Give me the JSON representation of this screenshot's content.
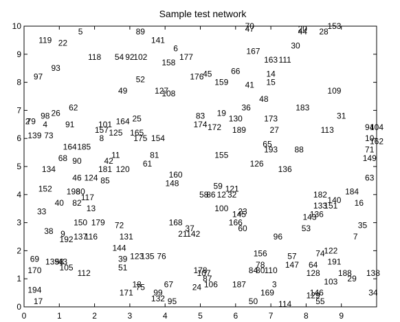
{
  "chart_data": {
    "type": "scatter",
    "title": "Sample test network",
    "xlabel": "",
    "ylabel": "",
    "xlim": [
      0,
      10
    ],
    "ylim": [
      0,
      10
    ],
    "xticks": [
      0,
      1,
      2,
      3,
      4,
      5,
      6,
      7,
      8,
      9
    ],
    "yticks": [
      0,
      1,
      2,
      3,
      4,
      5,
      6,
      7,
      8,
      9,
      10
    ],
    "grid": false,
    "marker": "text-label",
    "points": [
      {
        "label": "5",
        "x": 1.6,
        "y": 9.8
      },
      {
        "label": "89",
        "x": 3.3,
        "y": 9.8
      },
      {
        "label": "70",
        "x": 6.4,
        "y": 10.0
      },
      {
        "label": "47",
        "x": 6.4,
        "y": 9.9
      },
      {
        "label": "20",
        "x": 7.9,
        "y": 9.9
      },
      {
        "label": "44",
        "x": 7.9,
        "y": 9.8
      },
      {
        "label": "28",
        "x": 8.5,
        "y": 9.8
      },
      {
        "label": "153",
        "x": 8.8,
        "y": 10.0
      },
      {
        "label": "119",
        "x": 0.6,
        "y": 9.5
      },
      {
        "label": "22",
        "x": 1.1,
        "y": 9.4
      },
      {
        "label": "141",
        "x": 3.8,
        "y": 9.5
      },
      {
        "label": "30",
        "x": 7.7,
        "y": 9.3
      },
      {
        "label": "6",
        "x": 4.3,
        "y": 9.2
      },
      {
        "label": "167",
        "x": 6.5,
        "y": 9.1
      },
      {
        "label": "118",
        "x": 2.0,
        "y": 8.9
      },
      {
        "label": "54",
        "x": 2.7,
        "y": 8.9
      },
      {
        "label": "92",
        "x": 3.0,
        "y": 8.9
      },
      {
        "label": "102",
        "x": 3.3,
        "y": 8.9
      },
      {
        "label": "177",
        "x": 4.6,
        "y": 8.9
      },
      {
        "label": "158",
        "x": 4.1,
        "y": 8.7
      },
      {
        "label": "163",
        "x": 7.0,
        "y": 8.8
      },
      {
        "label": "111",
        "x": 7.4,
        "y": 8.8
      },
      {
        "label": "93",
        "x": 0.9,
        "y": 8.5
      },
      {
        "label": "66",
        "x": 6.0,
        "y": 8.4
      },
      {
        "label": "14",
        "x": 7.0,
        "y": 8.3
      },
      {
        "label": "176",
        "x": 4.9,
        "y": 8.2
      },
      {
        "label": "45",
        "x": 5.2,
        "y": 8.3
      },
      {
        "label": "97",
        "x": 0.4,
        "y": 8.2
      },
      {
        "label": "52",
        "x": 3.3,
        "y": 8.1
      },
      {
        "label": "159",
        "x": 5.6,
        "y": 8.0
      },
      {
        "label": "15",
        "x": 7.0,
        "y": 8.0
      },
      {
        "label": "41",
        "x": 6.4,
        "y": 7.9
      },
      {
        "label": "49",
        "x": 2.8,
        "y": 7.7
      },
      {
        "label": "127",
        "x": 3.9,
        "y": 7.7
      },
      {
        "label": "108",
        "x": 4.1,
        "y": 7.6
      },
      {
        "label": "109",
        "x": 8.8,
        "y": 7.7
      },
      {
        "label": "48",
        "x": 6.8,
        "y": 7.4
      },
      {
        "label": "62",
        "x": 1.4,
        "y": 7.1
      },
      {
        "label": "36",
        "x": 6.3,
        "y": 7.1
      },
      {
        "label": "183",
        "x": 7.9,
        "y": 7.1
      },
      {
        "label": "26",
        "x": 0.9,
        "y": 6.9
      },
      {
        "label": "98",
        "x": 0.6,
        "y": 6.8
      },
      {
        "label": "83",
        "x": 5.0,
        "y": 6.8
      },
      {
        "label": "19",
        "x": 5.6,
        "y": 6.9
      },
      {
        "label": "130",
        "x": 6.0,
        "y": 6.7
      },
      {
        "label": "173",
        "x": 7.0,
        "y": 6.7
      },
      {
        "label": "31",
        "x": 9.0,
        "y": 6.8
      },
      {
        "label": "2",
        "x": 0.1,
        "y": 6.6
      },
      {
        "label": "79",
        "x": 0.2,
        "y": 6.6
      },
      {
        "label": "4",
        "x": 0.6,
        "y": 6.5
      },
      {
        "label": "91",
        "x": 1.3,
        "y": 6.5
      },
      {
        "label": "101",
        "x": 2.3,
        "y": 6.5
      },
      {
        "label": "164",
        "x": 2.8,
        "y": 6.6
      },
      {
        "label": "25",
        "x": 3.2,
        "y": 6.7
      },
      {
        "label": "174",
        "x": 5.0,
        "y": 6.5
      },
      {
        "label": "172",
        "x": 5.4,
        "y": 6.4
      },
      {
        "label": "189",
        "x": 6.1,
        "y": 6.3
      },
      {
        "label": "27",
        "x": 7.1,
        "y": 6.3
      },
      {
        "label": "113",
        "x": 8.6,
        "y": 6.3
      },
      {
        "label": "94",
        "x": 9.8,
        "y": 6.4
      },
      {
        "label": "104",
        "x": 10.0,
        "y": 6.4
      },
      {
        "label": "157",
        "x": 2.2,
        "y": 6.3
      },
      {
        "label": "125",
        "x": 2.6,
        "y": 6.2
      },
      {
        "label": "165",
        "x": 3.2,
        "y": 6.2
      },
      {
        "label": "139",
        "x": 0.3,
        "y": 6.1
      },
      {
        "label": "73",
        "x": 0.7,
        "y": 6.1
      },
      {
        "label": "8",
        "x": 2.2,
        "y": 6.0
      },
      {
        "label": "175",
        "x": 3.3,
        "y": 6.0
      },
      {
        "label": "154",
        "x": 3.8,
        "y": 6.0
      },
      {
        "label": "10",
        "x": 9.8,
        "y": 6.0
      },
      {
        "label": "162",
        "x": 10.0,
        "y": 5.9
      },
      {
        "label": "164",
        "x": 1.3,
        "y": 5.7
      },
      {
        "label": "185",
        "x": 1.7,
        "y": 5.7
      },
      {
        "label": "65",
        "x": 6.9,
        "y": 5.8
      },
      {
        "label": "193",
        "x": 7.0,
        "y": 5.6
      },
      {
        "label": "88",
        "x": 7.8,
        "y": 5.6
      },
      {
        "label": "71",
        "x": 9.8,
        "y": 5.6
      },
      {
        "label": "68",
        "x": 1.1,
        "y": 5.3
      },
      {
        "label": "90",
        "x": 1.5,
        "y": 5.2
      },
      {
        "label": "11",
        "x": 2.6,
        "y": 5.4
      },
      {
        "label": "42",
        "x": 2.4,
        "y": 5.2
      },
      {
        "label": "81",
        "x": 3.7,
        "y": 5.4
      },
      {
        "label": "155",
        "x": 5.6,
        "y": 5.4
      },
      {
        "label": "149",
        "x": 9.8,
        "y": 5.3
      },
      {
        "label": "61",
        "x": 3.5,
        "y": 5.1
      },
      {
        "label": "126",
        "x": 6.6,
        "y": 5.1
      },
      {
        "label": "134",
        "x": 0.7,
        "y": 4.9
      },
      {
        "label": "181",
        "x": 2.3,
        "y": 4.9
      },
      {
        "label": "120",
        "x": 2.8,
        "y": 4.9
      },
      {
        "label": "136",
        "x": 7.4,
        "y": 4.9
      },
      {
        "label": "160",
        "x": 4.3,
        "y": 4.7
      },
      {
        "label": "46",
        "x": 1.5,
        "y": 4.6
      },
      {
        "label": "124",
        "x": 1.9,
        "y": 4.6
      },
      {
        "label": "85",
        "x": 2.3,
        "y": 4.5
      },
      {
        "label": "148",
        "x": 4.2,
        "y": 4.4
      },
      {
        "label": "59",
        "x": 5.5,
        "y": 4.3
      },
      {
        "label": "121",
        "x": 5.9,
        "y": 4.2
      },
      {
        "label": "63",
        "x": 9.8,
        "y": 4.6
      },
      {
        "label": "152",
        "x": 0.6,
        "y": 4.2
      },
      {
        "label": "198",
        "x": 1.4,
        "y": 4.1
      },
      {
        "label": "80",
        "x": 1.6,
        "y": 4.1
      },
      {
        "label": "58",
        "x": 5.1,
        "y": 4.0
      },
      {
        "label": "86",
        "x": 5.3,
        "y": 4.0
      },
      {
        "label": "12",
        "x": 5.6,
        "y": 4.0
      },
      {
        "label": "32",
        "x": 5.9,
        "y": 4.0
      },
      {
        "label": "182",
        "x": 8.4,
        "y": 4.0
      },
      {
        "label": "184",
        "x": 9.3,
        "y": 4.1
      },
      {
        "label": "117",
        "x": 1.8,
        "y": 3.9
      },
      {
        "label": "40",
        "x": 1.0,
        "y": 3.7
      },
      {
        "label": "82",
        "x": 1.5,
        "y": 3.7
      },
      {
        "label": "140",
        "x": 8.8,
        "y": 3.8
      },
      {
        "label": "133",
        "x": 8.4,
        "y": 3.6
      },
      {
        "label": "151",
        "x": 8.7,
        "y": 3.6
      },
      {
        "label": "16",
        "x": 9.5,
        "y": 3.7
      },
      {
        "label": "13",
        "x": 1.9,
        "y": 3.5
      },
      {
        "label": "100",
        "x": 5.6,
        "y": 3.5
      },
      {
        "label": "23",
        "x": 6.2,
        "y": 3.4
      },
      {
        "label": "33",
        "x": 0.5,
        "y": 3.4
      },
      {
        "label": "145",
        "x": 6.1,
        "y": 3.3
      },
      {
        "label": "136",
        "x": 8.3,
        "y": 3.3
      },
      {
        "label": "143",
        "x": 8.1,
        "y": 3.2
      },
      {
        "label": "150",
        "x": 1.6,
        "y": 3.0
      },
      {
        "label": "179",
        "x": 2.1,
        "y": 3.0
      },
      {
        "label": "72",
        "x": 2.7,
        "y": 2.9
      },
      {
        "label": "168",
        "x": 4.3,
        "y": 3.0
      },
      {
        "label": "166",
        "x": 6.0,
        "y": 3.0
      },
      {
        "label": "60",
        "x": 6.2,
        "y": 2.8
      },
      {
        "label": "37",
        "x": 4.7,
        "y": 2.8
      },
      {
        "label": "35",
        "x": 9.6,
        "y": 2.9
      },
      {
        "label": "53",
        "x": 8.0,
        "y": 2.8
      },
      {
        "label": "38",
        "x": 0.7,
        "y": 2.7
      },
      {
        "label": "9",
        "x": 1.1,
        "y": 2.6
      },
      {
        "label": "21",
        "x": 4.5,
        "y": 2.6
      },
      {
        "label": "142",
        "x": 4.8,
        "y": 2.6
      },
      {
        "label": "96",
        "x": 7.2,
        "y": 2.5
      },
      {
        "label": "7",
        "x": 9.4,
        "y": 2.5
      },
      {
        "label": "192",
        "x": 1.2,
        "y": 2.4
      },
      {
        "label": "137",
        "x": 1.6,
        "y": 2.5
      },
      {
        "label": "116",
        "x": 1.9,
        "y": 2.5
      },
      {
        "label": "131",
        "x": 2.9,
        "y": 2.5
      },
      {
        "label": "144",
        "x": 2.7,
        "y": 2.1
      },
      {
        "label": "156",
        "x": 6.7,
        "y": 1.9
      },
      {
        "label": "74",
        "x": 8.4,
        "y": 1.9
      },
      {
        "label": "122",
        "x": 8.7,
        "y": 2.0
      },
      {
        "label": "57",
        "x": 7.6,
        "y": 1.8
      },
      {
        "label": "123",
        "x": 3.2,
        "y": 1.8
      },
      {
        "label": "135",
        "x": 3.5,
        "y": 1.8
      },
      {
        "label": "76",
        "x": 3.9,
        "y": 1.8
      },
      {
        "label": "69",
        "x": 0.3,
        "y": 1.7
      },
      {
        "label": "139",
        "x": 0.8,
        "y": 1.6
      },
      {
        "label": "39",
        "x": 2.8,
        "y": 1.7
      },
      {
        "label": "191",
        "x": 8.8,
        "y": 1.6
      },
      {
        "label": "58",
        "x": 1.0,
        "y": 1.6
      },
      {
        "label": "43",
        "x": 1.1,
        "y": 1.6
      },
      {
        "label": "78",
        "x": 6.7,
        "y": 1.5
      },
      {
        "label": "147",
        "x": 7.6,
        "y": 1.5
      },
      {
        "label": "64",
        "x": 8.2,
        "y": 1.5
      },
      {
        "label": "51",
        "x": 2.8,
        "y": 1.4
      },
      {
        "label": "105",
        "x": 1.2,
        "y": 1.4
      },
      {
        "label": "84",
        "x": 6.5,
        "y": 1.3
      },
      {
        "label": "80",
        "x": 6.7,
        "y": 1.3
      },
      {
        "label": "110",
        "x": 7.0,
        "y": 1.3
      },
      {
        "label": "170",
        "x": 0.3,
        "y": 1.3
      },
      {
        "label": "112",
        "x": 1.7,
        "y": 1.2
      },
      {
        "label": "178",
        "x": 5.0,
        "y": 1.3
      },
      {
        "label": "107",
        "x": 5.1,
        "y": 1.2
      },
      {
        "label": "128",
        "x": 8.2,
        "y": 1.2
      },
      {
        "label": "188",
        "x": 9.1,
        "y": 1.2
      },
      {
        "label": "138",
        "x": 9.9,
        "y": 1.2
      },
      {
        "label": "87",
        "x": 5.2,
        "y": 1.0
      },
      {
        "label": "29",
        "x": 9.3,
        "y": 1.0
      },
      {
        "label": "103",
        "x": 8.7,
        "y": 0.9
      },
      {
        "label": "18",
        "x": 3.2,
        "y": 0.8
      },
      {
        "label": "67",
        "x": 4.1,
        "y": 0.8
      },
      {
        "label": "106",
        "x": 5.3,
        "y": 0.8
      },
      {
        "label": "187",
        "x": 6.1,
        "y": 0.8
      },
      {
        "label": "3",
        "x": 7.1,
        "y": 0.8
      },
      {
        "label": "194",
        "x": 0.3,
        "y": 0.6
      },
      {
        "label": "75",
        "x": 3.3,
        "y": 0.7
      },
      {
        "label": "24",
        "x": 4.9,
        "y": 0.7
      },
      {
        "label": "34",
        "x": 9.9,
        "y": 0.5
      },
      {
        "label": "171",
        "x": 2.9,
        "y": 0.5
      },
      {
        "label": "99",
        "x": 3.8,
        "y": 0.5
      },
      {
        "label": "169",
        "x": 6.9,
        "y": 0.5
      },
      {
        "label": "146",
        "x": 8.3,
        "y": 0.5
      },
      {
        "label": "132",
        "x": 3.8,
        "y": 0.3
      },
      {
        "label": "95",
        "x": 4.2,
        "y": 0.2
      },
      {
        "label": "129",
        "x": 8.2,
        "y": 0.4
      },
      {
        "label": "17",
        "x": 0.4,
        "y": 0.2
      },
      {
        "label": "50",
        "x": 6.5,
        "y": 0.2
      },
      {
        "label": "114",
        "x": 7.4,
        "y": 0.1
      },
      {
        "label": "55",
        "x": 8.4,
        "y": 0.2
      }
    ]
  }
}
